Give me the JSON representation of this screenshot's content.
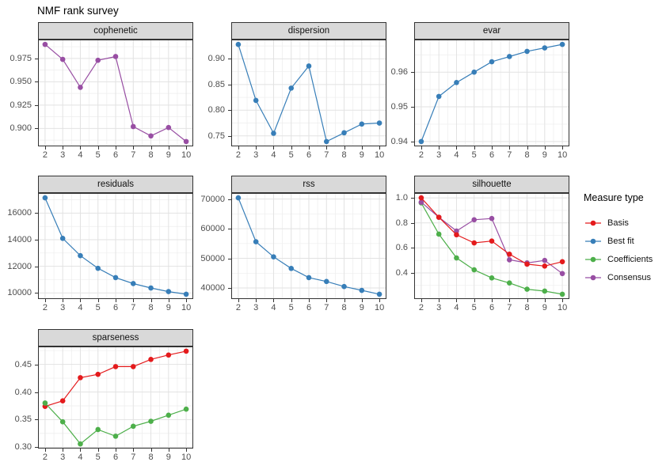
{
  "title": "NMF rank survey",
  "legend": {
    "title": "Measure type",
    "items": [
      {
        "label": "Basis",
        "color": "#E41A1C"
      },
      {
        "label": "Best fit",
        "color": "#377EB8"
      },
      {
        "label": "Coefficients",
        "color": "#4DAF4A"
      },
      {
        "label": "Consensus",
        "color": "#984EA3"
      }
    ]
  },
  "style": {
    "strip_bg": "#D9D9D9",
    "panel_border": "#333333",
    "grid_major": "#E2E2E2",
    "grid_minor": "#EDEDED",
    "axis_text": "#4D4D4D",
    "background": "#FFFFFF"
  },
  "x_values": [
    2,
    3,
    4,
    5,
    6,
    7,
    8,
    9,
    10
  ],
  "x_labels": [
    "2",
    "3",
    "4",
    "5",
    "6",
    "7",
    "8",
    "9",
    "10"
  ],
  "chart_data": [
    {
      "type": "line",
      "title": "cophenetic",
      "row": 0,
      "col": 0,
      "xlim": [
        1.6,
        10.4
      ],
      "ylim": [
        0.8808,
        0.9952
      ],
      "yticks": [
        0.9,
        0.925,
        0.95,
        0.975
      ],
      "ylabels": [
        "0.900",
        "0.925",
        "0.950",
        "0.975"
      ],
      "series": [
        {
          "name": "Consensus",
          "color": "#984EA3",
          "values": [
            0.99,
            0.974,
            0.944,
            0.973,
            0.977,
            0.902,
            0.892,
            0.901,
            0.886
          ]
        }
      ]
    },
    {
      "type": "line",
      "title": "dispersion",
      "row": 0,
      "col": 1,
      "xlim": [
        1.6,
        10.4
      ],
      "ylim": [
        0.7296,
        0.9375
      ],
      "yticks": [
        0.75,
        0.8,
        0.85,
        0.9
      ],
      "ylabels": [
        "0.75",
        "0.80",
        "0.85",
        "0.90"
      ],
      "series": [
        {
          "name": "Best fit",
          "color": "#377EB8",
          "values": [
            0.928,
            0.819,
            0.755,
            0.843,
            0.886,
            0.739,
            0.756,
            0.773,
            0.775
          ]
        }
      ]
    },
    {
      "type": "line",
      "title": "evar",
      "row": 0,
      "col": 2,
      "xlim": [
        1.6,
        10.4
      ],
      "ylim": [
        0.9386,
        0.9694
      ],
      "yticks": [
        0.94,
        0.95,
        0.96
      ],
      "ylabels": [
        "0.94",
        "0.95",
        "0.96"
      ],
      "series": [
        {
          "name": "Best fit",
          "color": "#377EB8",
          "values": [
            0.94,
            0.953,
            0.957,
            0.96,
            0.963,
            0.9645,
            0.966,
            0.967,
            0.968
          ]
        }
      ]
    },
    {
      "type": "line",
      "title": "residuals",
      "row": 1,
      "col": 0,
      "xlim": [
        1.6,
        10.4
      ],
      "ylim": [
        9538,
        17512
      ],
      "yticks": [
        10000,
        12000,
        14000,
        16000
      ],
      "ylabels": [
        "10000",
        "12000",
        "14000",
        "16000"
      ],
      "series": [
        {
          "name": "Best fit",
          "color": "#377EB8",
          "values": [
            17150,
            14100,
            12800,
            11850,
            11150,
            10700,
            10370,
            10100,
            9900
          ]
        }
      ]
    },
    {
      "type": "line",
      "title": "rss",
      "row": 1,
      "col": 1,
      "xlim": [
        1.6,
        10.4
      ],
      "ylim": [
        36275,
        72025
      ],
      "yticks": [
        40000,
        50000,
        60000,
        70000
      ],
      "ylabels": [
        "40000",
        "50000",
        "60000",
        "70000"
      ],
      "series": [
        {
          "name": "Best fit",
          "color": "#377EB8",
          "values": [
            70400,
            55600,
            50500,
            46600,
            43500,
            42200,
            40500,
            39200,
            37900
          ]
        }
      ]
    },
    {
      "type": "line",
      "title": "silhouette",
      "row": 1,
      "col": 2,
      "xlim": [
        1.6,
        10.4
      ],
      "ylim": [
        0.1915,
        1.0385
      ],
      "yticks": [
        0.4,
        0.6,
        0.8,
        1.0
      ],
      "ylabels": [
        "0.4",
        "0.6",
        "0.8",
        "1.0"
      ],
      "series": [
        {
          "name": "Coefficients",
          "color": "#4DAF4A",
          "values": [
            0.96,
            0.71,
            0.52,
            0.425,
            0.36,
            0.32,
            0.27,
            0.255,
            0.23
          ]
        },
        {
          "name": "Consensus",
          "color": "#984EA3",
          "values": [
            0.965,
            0.845,
            0.735,
            0.825,
            0.835,
            0.505,
            0.48,
            0.5,
            0.395
          ]
        },
        {
          "name": "Basis",
          "color": "#E41A1C",
          "values": [
            1.0,
            0.845,
            0.705,
            0.64,
            0.655,
            0.55,
            0.47,
            0.455,
            0.49
          ]
        }
      ]
    },
    {
      "type": "line",
      "title": "sparseness",
      "row": 2,
      "col": 0,
      "xlim": [
        1.6,
        10.4
      ],
      "ylim": [
        0.2976,
        0.4824
      ],
      "yticks": [
        0.3,
        0.35,
        0.4,
        0.45
      ],
      "ylabels": [
        "0.30",
        "0.35",
        "0.40",
        "0.45"
      ],
      "series": [
        {
          "name": "Basis",
          "color": "#E41A1C",
          "values": [
            0.374,
            0.384,
            0.426,
            0.432,
            0.446,
            0.446,
            0.459,
            0.467,
            0.474
          ]
        },
        {
          "name": "Coefficients",
          "color": "#4DAF4A",
          "values": [
            0.38,
            0.346,
            0.306,
            0.332,
            0.32,
            0.338,
            0.347,
            0.358,
            0.369
          ]
        }
      ]
    }
  ]
}
